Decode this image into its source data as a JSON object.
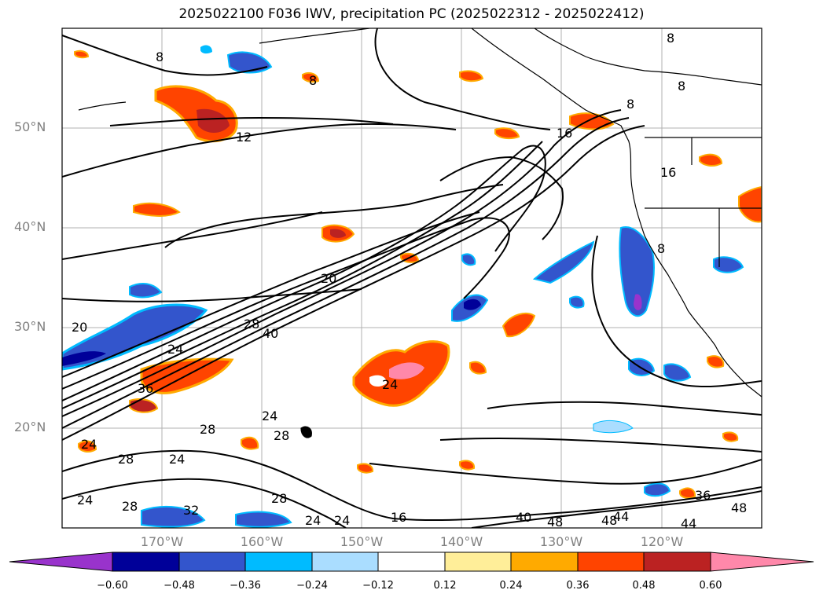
{
  "title": "2025022100 F036 IWV, precipitation PC (2025022312 - 2025022412)",
  "map": {
    "lat_labels": [
      "50°N",
      "40°N",
      "30°N",
      "20°N"
    ],
    "lon_labels": [
      "170°W",
      "160°W",
      "150°W",
      "140°W",
      "130°W",
      "120°W"
    ],
    "contour_labels": [
      "8",
      "8",
      "8",
      "8",
      "8",
      "12",
      "16",
      "16",
      "20",
      "20",
      "24",
      "28",
      "40",
      "36",
      "24",
      "28",
      "24",
      "28",
      "24",
      "28",
      "24",
      "28",
      "24",
      "28",
      "32",
      "40",
      "48",
      "48",
      "44",
      "44",
      "36",
      "48",
      "24",
      "8",
      "24",
      "16"
    ]
  },
  "colorbar": {
    "colors": [
      "#9933cc",
      "#000099",
      "#3355cc",
      "#00bbff",
      "#aaddff",
      "#ffffff",
      "#ffee99",
      "#ffaa00",
      "#ff4400",
      "#bb2222",
      "#ff88aa"
    ],
    "ticks": [
      "−0.60",
      "−0.48",
      "−0.36",
      "−0.24",
      "−0.12",
      "0.12",
      "0.24",
      "0.36",
      "0.48",
      "0.60"
    ]
  }
}
